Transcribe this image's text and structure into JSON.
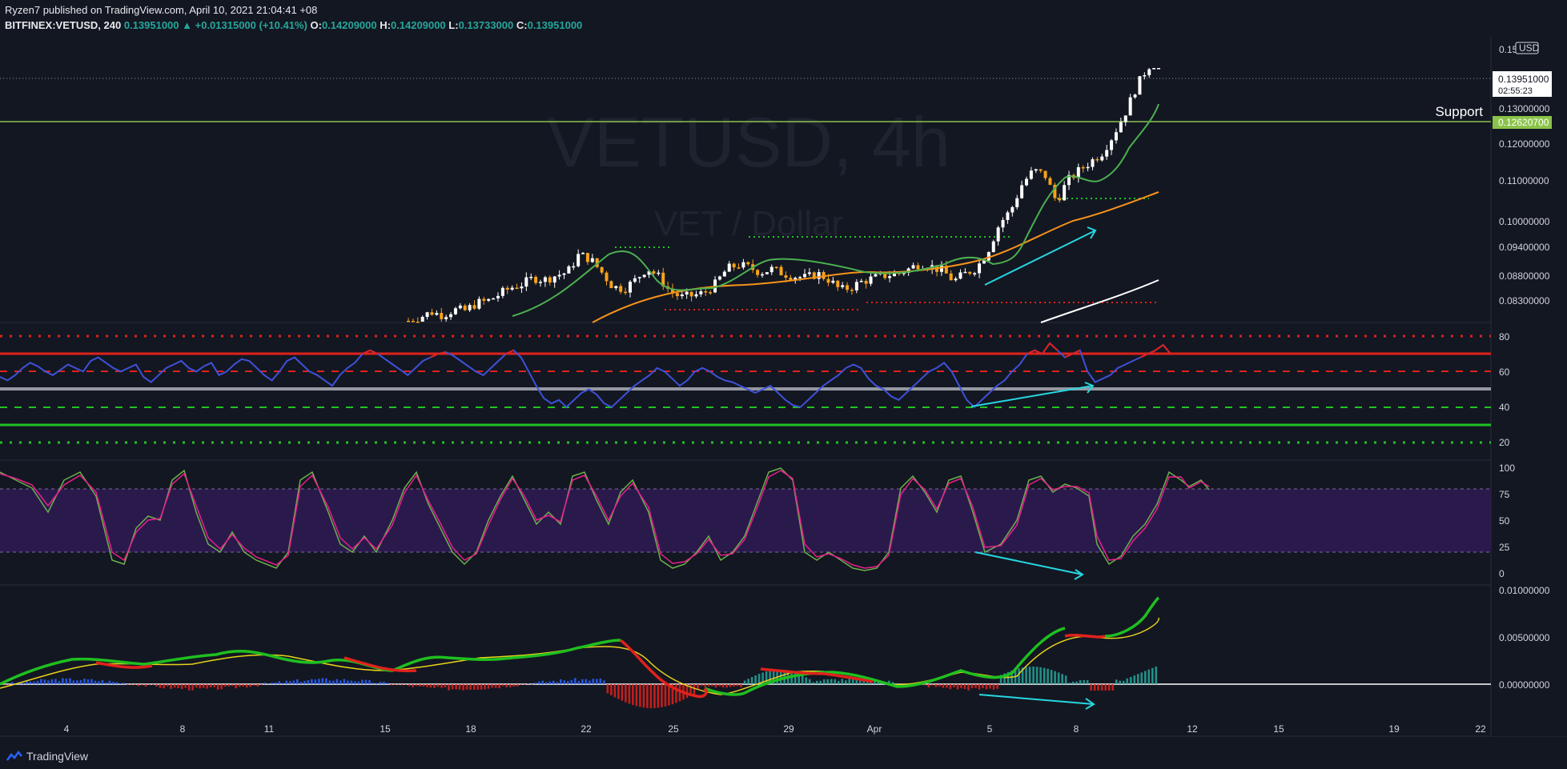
{
  "header": {
    "publisher_line": "Ryzen7 published on TradingView.com, April 10, 2021 21:04:41 +08",
    "symbol": "BITFINEX:VETUSD, 240",
    "last": "0.13951000",
    "change": "▲ +0.01315000 (+10.41%)",
    "o_label": "O:",
    "o_value": "0.14209000",
    "h_label": "H:",
    "h_value": "0.14209000",
    "l_label": "L:",
    "l_value": "0.13733000",
    "c_label": "C:",
    "c_value": "0.13951000"
  },
  "watermark": {
    "title": "VETUSD, 4h",
    "subtitle": "VET / Dollar"
  },
  "brand": {
    "name": "TradingView"
  },
  "colors": {
    "background": "#131722",
    "up": "#ffffff",
    "down": "#f7a21b",
    "ema_fast": "#4caf50",
    "ema_mid": "#f7931a",
    "ema_slow": "#ffffff",
    "support": "#8bc34a",
    "rsi": "#3f51d8",
    "stoch_k": "#e91e8c",
    "stoch_d": "#6ab04c",
    "macd_up": "#1fbf1f",
    "macd_down": "#e0221c",
    "signal": "#e8d21a",
    "arrow": "#26d7e0"
  },
  "chart_data": [
    {
      "type": "candlestick",
      "name": "price",
      "price_axis_unit": "USD",
      "y_ticks": [
        "0.15",
        "0.13000000",
        "0.12000000",
        "0.11000000",
        "0.10000000",
        "0.09400000",
        "0.08800000",
        "0.08300000"
      ],
      "current_price_label": "0.13951000",
      "countdown": "02:55:23",
      "support": {
        "label": "Support",
        "value": "0.12620700"
      },
      "x_ticks": [
        "4",
        "8",
        "11",
        "15",
        "18",
        "22",
        "25",
        "29",
        "Apr",
        "5",
        "8",
        "12",
        "15",
        "19",
        "22"
      ],
      "close_path": [
        0.0795,
        0.0803,
        0.0815,
        0.0808,
        0.082,
        0.0818,
        0.0835,
        0.084,
        0.0855,
        0.087,
        0.0878,
        0.0892,
        0.0888,
        0.0898,
        0.0905,
        0.0945,
        0.0935,
        0.0905,
        0.0872,
        0.0868,
        0.0888,
        0.0915,
        0.0895,
        0.0862,
        0.0848,
        0.0852,
        0.0858,
        0.0878,
        0.0912,
        0.0922,
        0.0915,
        0.0905,
        0.0912,
        0.0902,
        0.0896,
        0.0892,
        0.0902,
        0.0888,
        0.0864,
        0.0872,
        0.0885,
        0.0892,
        0.0898,
        0.0902,
        0.0912,
        0.0925,
        0.0918,
        0.0908,
        0.0885,
        0.0902,
        0.0915,
        0.0955,
        0.1015,
        0.1045,
        0.1105,
        0.1135,
        0.1125,
        0.1065,
        0.1112,
        0.1135,
        0.1155,
        0.1175,
        0.1215,
        0.1262,
        0.1322,
        0.1368,
        0.1395
      ]
    },
    {
      "type": "line",
      "name": "rsi",
      "y_ticks": [
        "80",
        "60",
        "40",
        "20"
      ],
      "levels": [
        80,
        70,
        60,
        50,
        40,
        30,
        20
      ],
      "values": [
        57,
        55,
        58,
        62,
        65,
        63,
        60,
        58,
        61,
        64,
        62,
        60,
        66,
        68,
        65,
        62,
        60,
        62,
        64,
        57,
        54,
        58,
        62,
        64,
        66,
        62,
        60,
        63,
        65,
        58,
        60,
        64,
        67,
        66,
        62,
        58,
        55,
        60,
        66,
        68,
        64,
        60,
        58,
        55,
        52,
        58,
        62,
        65,
        70,
        72,
        70,
        67,
        64,
        61,
        58,
        62,
        66,
        68,
        70,
        71,
        69,
        66,
        63,
        60,
        58,
        62,
        66,
        70,
        72,
        68,
        60,
        52,
        45,
        42,
        44,
        40,
        44,
        48,
        50,
        47,
        42,
        40,
        44,
        48,
        52,
        55,
        58,
        62,
        60,
        56,
        52,
        55,
        60,
        62,
        60,
        57,
        55,
        54,
        52,
        50,
        48,
        50,
        52,
        48,
        44,
        41,
        40,
        44,
        48,
        52,
        55,
        58,
        62,
        64,
        62,
        56,
        52,
        50,
        46,
        44,
        48,
        52,
        56,
        60,
        62,
        65,
        60,
        52,
        44,
        40,
        44,
        48,
        52,
        55,
        60,
        64,
        70,
        72,
        70,
        76,
        72,
        68,
        70,
        72,
        60,
        54,
        56,
        58,
        62,
        64,
        66,
        68,
        70,
        72,
        75,
        70
      ]
    },
    {
      "type": "line",
      "name": "stoch_rsi",
      "y_ticks": [
        "100",
        "75",
        "50",
        "25",
        "0"
      ],
      "band": [
        20,
        80
      ]
    },
    {
      "type": "bar",
      "name": "macd",
      "y_ticks": [
        "0.01000000",
        "0.00500000",
        "0.00000000"
      ],
      "ylim": [
        -0.0025,
        0.0105
      ]
    }
  ]
}
